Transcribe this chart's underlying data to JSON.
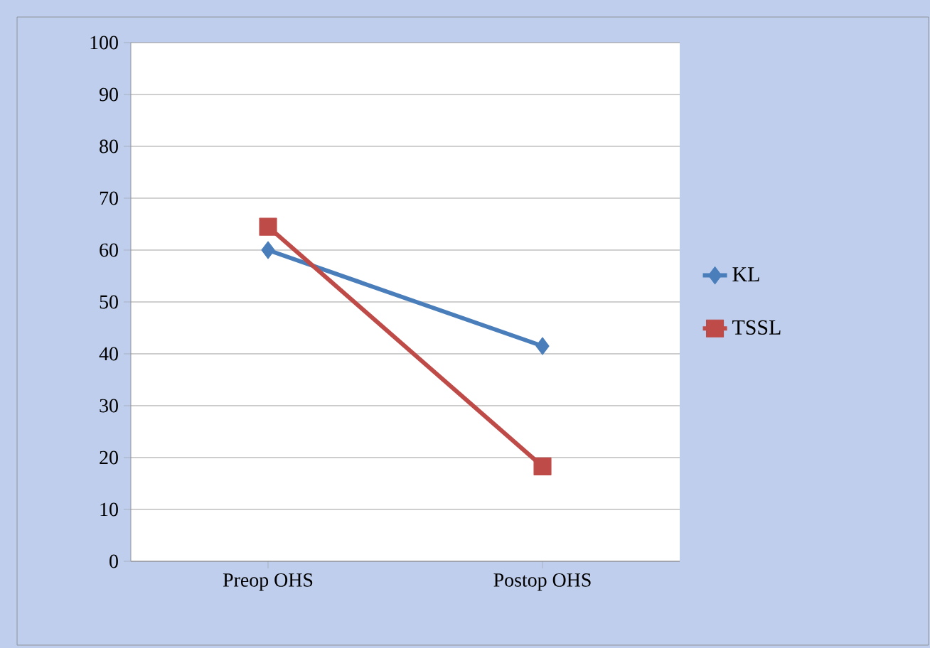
{
  "chart_data": {
    "type": "line",
    "categories": [
      "Preop OHS",
      "Postop OHS"
    ],
    "series": [
      {
        "name": "KL",
        "color": "#4a7ebb",
        "values": [
          60,
          41.5
        ],
        "marker": "diamond"
      },
      {
        "name": "TSSL",
        "color": "#be4b48",
        "values": [
          64.5,
          18.3
        ],
        "marker": "square"
      }
    ],
    "ylim": [
      0,
      100
    ],
    "yticks": [
      0,
      10,
      20,
      30,
      40,
      50,
      60,
      70,
      80,
      90,
      100
    ],
    "grid": "y",
    "legend": "right"
  }
}
